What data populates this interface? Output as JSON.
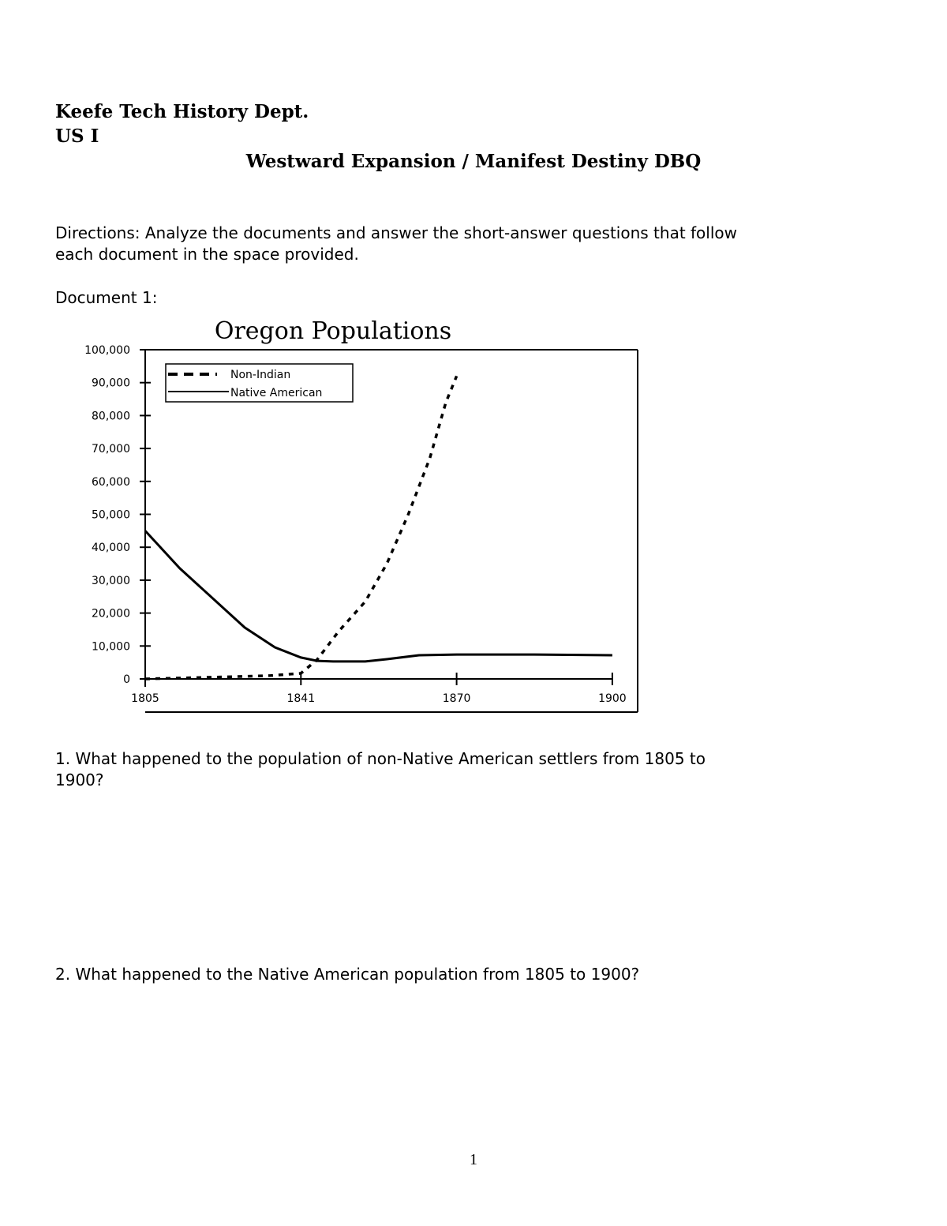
{
  "header": {
    "dept": "Keefe Tech History Dept.",
    "course": "US I",
    "title": "Westward Expansion / Manifest Destiny DBQ"
  },
  "directions": {
    "line1": "Directions:  Analyze the documents and answer the short-answer questions that follow",
    "line2": "each document in the space provided."
  },
  "document_label": "Document 1:",
  "chart_data": {
    "type": "line",
    "title": "Oregon Populations",
    "xlabel": "",
    "ylabel": "",
    "x_tick_labels": [
      "1805",
      "1841",
      "1870",
      "1900"
    ],
    "y_tick_labels": [
      "0",
      "10,000",
      "20,000",
      "30,000",
      "40,000",
      "50,000",
      "60,000",
      "70,000",
      "80,000",
      "90,000",
      "100,000"
    ],
    "ylim": [
      0,
      100000
    ],
    "x_axis_note": "tick labels evenly spaced",
    "legend_position": "top-left",
    "grid": false,
    "series": [
      {
        "name": "Non-Indian",
        "style": "dashed",
        "x": [
          1805,
          1826,
          1834,
          1841,
          1844,
          1848,
          1853,
          1857,
          1861,
          1865,
          1868,
          1870
        ],
        "y": [
          0,
          700,
          1000,
          1700,
          5800,
          14400,
          23500,
          35000,
          50000,
          67000,
          84000,
          92000
        ]
      },
      {
        "name": "Native American",
        "style": "solid",
        "x": [
          1805,
          1813,
          1821,
          1828,
          1835,
          1841,
          1844,
          1847,
          1853,
          1857,
          1863,
          1870,
          1885,
          1900
        ],
        "y": [
          45000,
          33600,
          24000,
          15600,
          9600,
          6500,
          5500,
          5300,
          5300,
          6000,
          7200,
          7400,
          7400,
          7200
        ]
      }
    ]
  },
  "questions": {
    "q1_line1": "1.  What happened to the population of non-Native American settlers from 1805 to",
    "q1_line2": "1900?",
    "q2": "2.  What happened to the Native American population from 1805 to 1900?"
  },
  "page_number": "1"
}
